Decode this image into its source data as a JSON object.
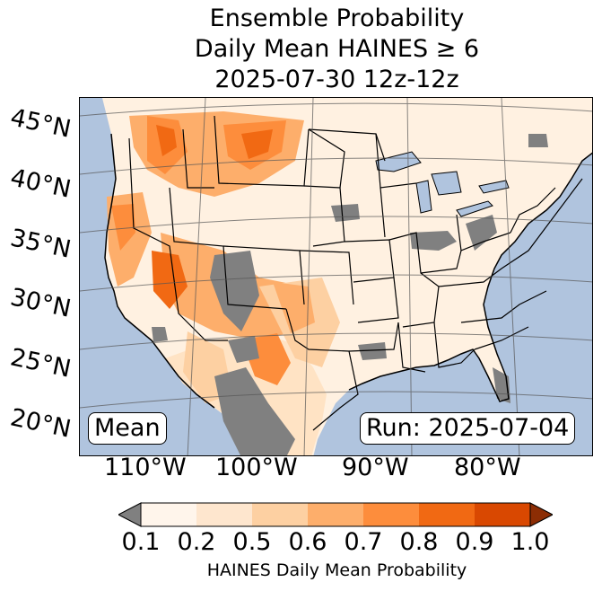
{
  "title": {
    "line1": "Ensemble Probability",
    "line2": "Daily Mean HAINES ≥ 6",
    "line3": "2025-07-30 12z-12z"
  },
  "map": {
    "lat_labels": [
      "45°N",
      "40°N",
      "35°N",
      "30°N",
      "25°N",
      "20°N"
    ],
    "lon_labels": [
      "110°W",
      "100°W",
      "90°W",
      "80°W"
    ],
    "mean_label": "Mean",
    "run_label": "Run: 2025-07-04",
    "colors": {
      "ocean": "#b0c4de",
      "land": "#ffffff",
      "missing": "#808080"
    }
  },
  "colorbar": {
    "tick_labels": [
      "0.1",
      "0.2",
      "0.5",
      "0.6",
      "0.7",
      "0.8",
      "0.9",
      "1.0"
    ],
    "colors": [
      "#fff5eb",
      "#fee6ce",
      "#fdd0a2",
      "#fdae6b",
      "#fd8d3c",
      "#f16913",
      "#d94801",
      "#8c2d04"
    ],
    "under_color": "#808080",
    "title": "HAINES Daily Mean Probability"
  }
}
